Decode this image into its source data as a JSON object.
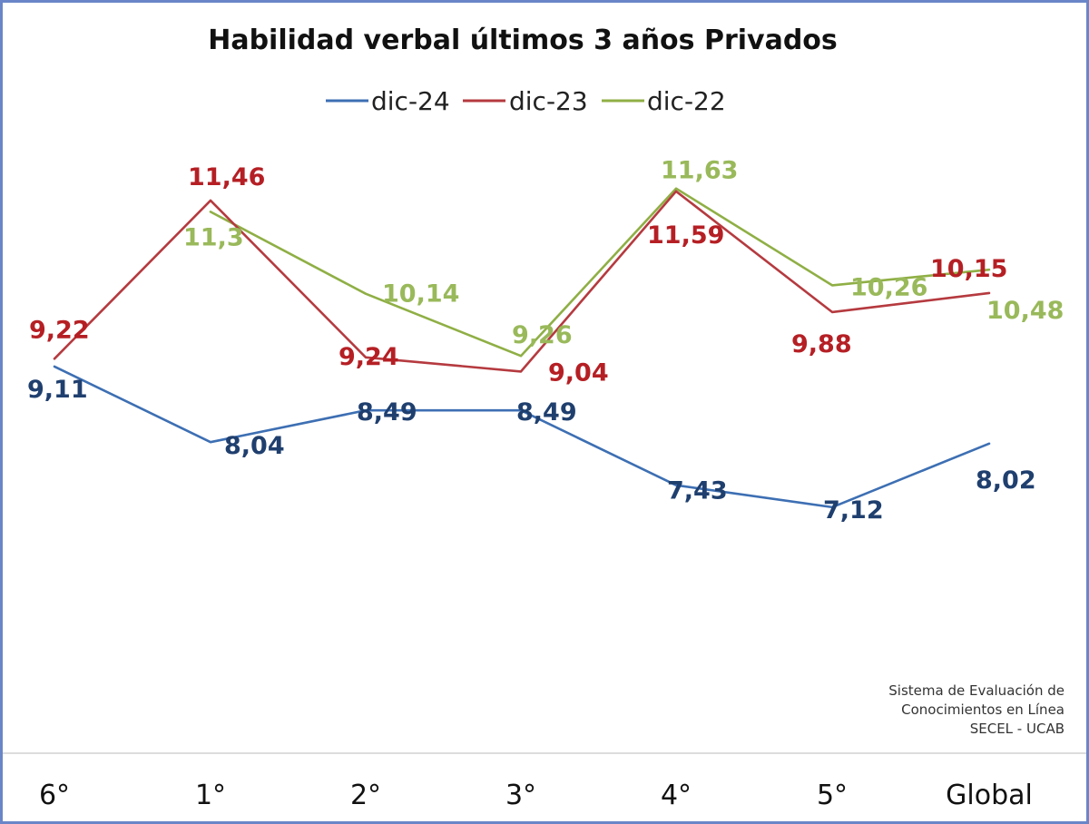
{
  "chart_data": {
    "type": "line",
    "title": "Habilidad verbal últimos 3 años Privados",
    "categories": [
      "6°",
      "1°",
      "2°",
      "3°",
      "4°",
      "5°",
      "Global"
    ],
    "series": [
      {
        "name": "dic-24",
        "color": "#3d6fb3",
        "label_color": "#1f3f6e",
        "values": [
          9.11,
          8.04,
          8.49,
          8.49,
          7.43,
          7.12,
          8.02
        ],
        "labels": [
          "9,11",
          "8,04",
          "8,49",
          "8,49",
          "7,43",
          "7,12",
          "8,02"
        ]
      },
      {
        "name": "dic-23",
        "color": "#b53a3f",
        "label_color": "#b51f24",
        "values": [
          9.22,
          11.46,
          9.24,
          9.04,
          11.59,
          9.88,
          10.15
        ],
        "labels": [
          "9,22",
          "11,46",
          "9,24",
          "9,04",
          "11,59",
          "9,88",
          "10,15"
        ]
      },
      {
        "name": "dic-22",
        "color": "#8faf45",
        "label_color": "#99b95a",
        "values": [
          null,
          11.3,
          10.14,
          9.26,
          11.63,
          10.26,
          10.48
        ],
        "labels": [
          null,
          "11,3",
          "10,14",
          "9,26",
          "11,63",
          "10,26",
          "10,48"
        ]
      }
    ],
    "legend_position": "top",
    "grid": false,
    "ylim": [
      5.5,
      13
    ]
  },
  "credit": {
    "line1": "Sistema de Evaluación de",
    "line2": "Conocimientos en Línea",
    "line3": "SECEL - UCAB"
  }
}
